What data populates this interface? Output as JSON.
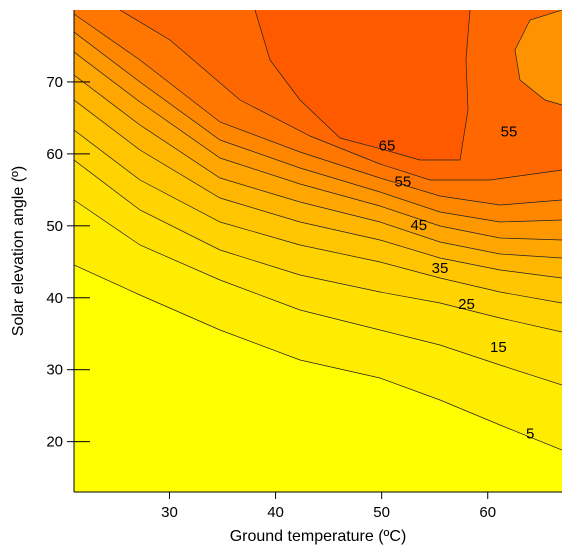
{
  "chart_data": {
    "type": "heatmap",
    "subtype": "filled-contour",
    "title": "",
    "xlabel": "Ground temperature (ºC)",
    "ylabel": "Solar elevation angle (º)",
    "xlim": [
      21,
      67
    ],
    "ylim": [
      13,
      80
    ],
    "x_ticks": [
      30,
      40,
      50,
      60
    ],
    "y_ticks": [
      20,
      30,
      40,
      50,
      60,
      70
    ],
    "grid": false,
    "legend": "none",
    "colormap": {
      "low_color": "#ffff00",
      "mid_color": "#ffc400",
      "high_color": "#ff5a00"
    },
    "contour_labels": [
      {
        "value": "5",
        "x": 64.0,
        "y": 21.0
      },
      {
        "value": "15",
        "x": 61.0,
        "y": 33.0
      },
      {
        "value": "25",
        "x": 58.0,
        "y": 39.0
      },
      {
        "value": "35",
        "x": 55.5,
        "y": 44.0
      },
      {
        "value": "45",
        "x": 53.5,
        "y": 50.0
      },
      {
        "value": "55",
        "x": 52.0,
        "y": 56.0
      },
      {
        "value": "65",
        "x": 50.5,
        "y": 61.0
      },
      {
        "value": "55",
        "x": 62.0,
        "y": 63.0
      }
    ]
  }
}
